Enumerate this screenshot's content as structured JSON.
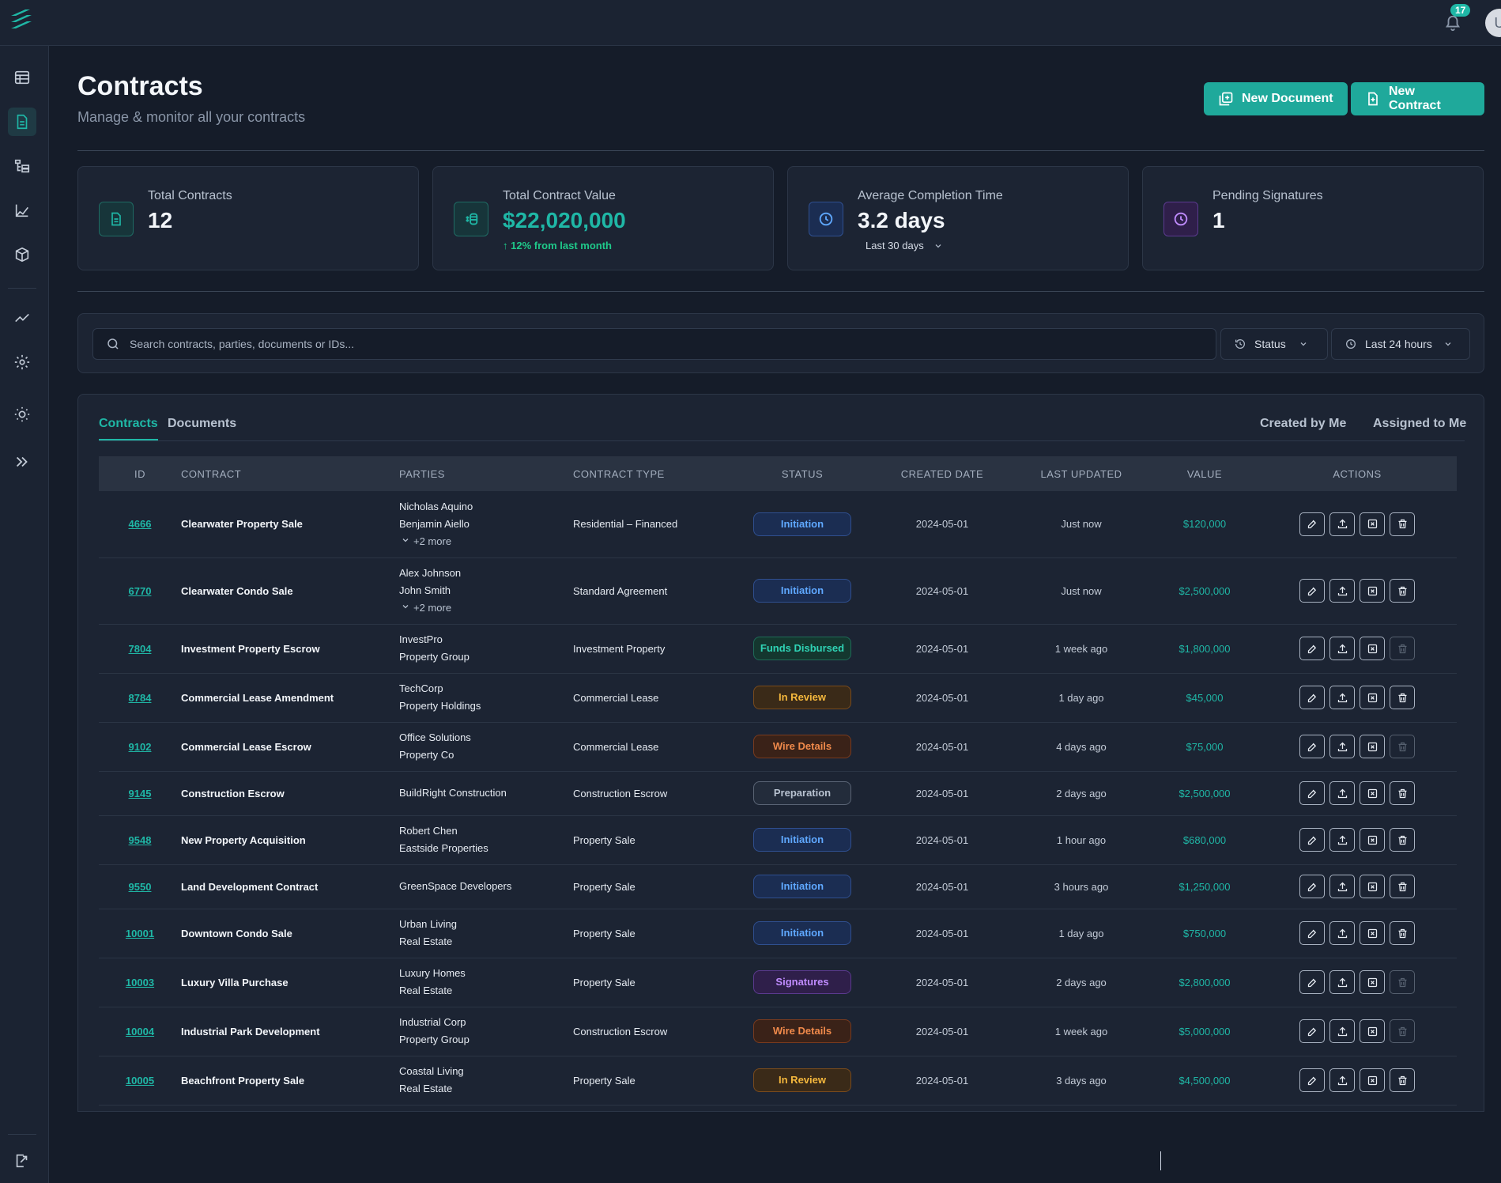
{
  "header": {
    "notification_count": "17",
    "avatar_initial": "U"
  },
  "sidebar": {
    "icons": [
      "table-icon",
      "document-icon",
      "hierarchy-icon",
      "chart-icon",
      "cube-icon",
      "trend-icon",
      "gear-icon",
      "sun-icon",
      "expand-icon",
      "logout-icon"
    ]
  },
  "page": {
    "title": "Contracts",
    "subtitle": "Manage & monitor all your contracts",
    "new_document_label": "New Document",
    "new_contract_label": "New Contract"
  },
  "stats": [
    {
      "label": "Total Contracts",
      "value": "12",
      "note": "",
      "color": "#1fb7a6"
    },
    {
      "label": "Total Contract Value",
      "value": "$22,020,000",
      "note": "↑ 12% from last month",
      "color": "#1fb7a6"
    },
    {
      "label": "Average Completion Time",
      "value": "3.2 days",
      "note": "Last 30 days",
      "color": "#3b82f6"
    },
    {
      "label": "Pending Signatures",
      "value": "1",
      "note": "",
      "color": "#a855f7"
    }
  ],
  "filters": {
    "search_placeholder": "Search contracts, parties, documents or IDs...",
    "status_label": "Status",
    "time_label": "Last 24 hours"
  },
  "tabs": {
    "contracts": "Contracts",
    "documents": "Documents",
    "created_by_me": "Created by Me",
    "assigned_to_me": "Assigned to Me"
  },
  "table": {
    "headers": [
      "ID",
      "CONTRACT",
      "PARTIES",
      "CONTRACT TYPE",
      "STATUS",
      "CREATED DATE",
      "LAST UPDATED",
      "VALUE",
      "ACTIONS"
    ],
    "rows": [
      {
        "id": "4666",
        "contract": "Clearwater Property Sale",
        "parties": [
          "Nicholas Aquino",
          "Benjamin Aiello"
        ],
        "more": "+2 more",
        "type": "Residential – Financed",
        "status": "Initiation",
        "created": "2024-05-01",
        "updated": "Just now",
        "value": "$120,000",
        "delete_enabled": true
      },
      {
        "id": "6770",
        "contract": "Clearwater Condo Sale",
        "parties": [
          "Alex Johnson",
          "John Smith"
        ],
        "more": "+2 more",
        "type": "Standard Agreement",
        "status": "Initiation",
        "created": "2024-05-01",
        "updated": "Just now",
        "value": "$2,500,000",
        "delete_enabled": true
      },
      {
        "id": "7804",
        "contract": "Investment Property Escrow",
        "parties": [
          "InvestPro",
          "Property Group"
        ],
        "more": "",
        "type": "Investment Property",
        "status": "Funds Disbursed",
        "created": "2024-05-01",
        "updated": "1 week ago",
        "value": "$1,800,000",
        "delete_enabled": false
      },
      {
        "id": "8784",
        "contract": "Commercial Lease Amendment",
        "parties": [
          "TechCorp",
          "Property Holdings"
        ],
        "more": "",
        "type": "Commercial Lease",
        "status": "In Review",
        "created": "2024-05-01",
        "updated": "1 day ago",
        "value": "$45,000",
        "delete_enabled": true
      },
      {
        "id": "9102",
        "contract": "Commercial Lease Escrow",
        "parties": [
          "Office Solutions",
          "Property Co"
        ],
        "more": "",
        "type": "Commercial Lease",
        "status": "Wire Details",
        "created": "2024-05-01",
        "updated": "4 days ago",
        "value": "$75,000",
        "delete_enabled": false
      },
      {
        "id": "9145",
        "contract": "Construction Escrow",
        "parties": [
          "BuildRight Construction"
        ],
        "more": "",
        "type": "Construction Escrow",
        "status": "Preparation",
        "created": "2024-05-01",
        "updated": "2 days ago",
        "value": "$2,500,000",
        "delete_enabled": true
      },
      {
        "id": "9548",
        "contract": "New Property Acquisition",
        "parties": [
          "Robert Chen",
          "Eastside Properties"
        ],
        "more": "",
        "type": "Property Sale",
        "status": "Initiation",
        "created": "2024-05-01",
        "updated": "1 hour ago",
        "value": "$680,000",
        "delete_enabled": true
      },
      {
        "id": "9550",
        "contract": "Land Development Contract",
        "parties": [
          "GreenSpace Developers"
        ],
        "more": "",
        "type": "Property Sale",
        "status": "Initiation",
        "created": "2024-05-01",
        "updated": "3 hours ago",
        "value": "$1,250,000",
        "delete_enabled": true
      },
      {
        "id": "10001",
        "contract": "Downtown Condo Sale",
        "parties": [
          "Urban Living",
          "Real Estate"
        ],
        "more": "",
        "type": "Property Sale",
        "status": "Initiation",
        "created": "2024-05-01",
        "updated": "1 day ago",
        "value": "$750,000",
        "delete_enabled": true
      },
      {
        "id": "10003",
        "contract": "Luxury Villa Purchase",
        "parties": [
          "Luxury Homes",
          "Real Estate"
        ],
        "more": "",
        "type": "Property Sale",
        "status": "Signatures",
        "created": "2024-05-01",
        "updated": "2 days ago",
        "value": "$2,800,000",
        "delete_enabled": false
      },
      {
        "id": "10004",
        "contract": "Industrial Park Development",
        "parties": [
          "Industrial Corp",
          "Property Group"
        ],
        "more": "",
        "type": "Construction Escrow",
        "status": "Wire Details",
        "created": "2024-05-01",
        "updated": "1 week ago",
        "value": "$5,000,000",
        "delete_enabled": false
      },
      {
        "id": "10005",
        "contract": "Beachfront Property Sale",
        "parties": [
          "Coastal Living",
          "Real Estate"
        ],
        "more": "",
        "type": "Property Sale",
        "status": "In Review",
        "created": "2024-05-01",
        "updated": "3 days ago",
        "value": "$4,500,000",
        "delete_enabled": true
      }
    ]
  },
  "status_colors": {
    "Initiation": {
      "text": "#5fa8ff",
      "bg": "#1b2d52",
      "border": "#2f4f8f"
    },
    "Funds Disbursed": {
      "text": "#2fd3b5",
      "bg": "#14372f",
      "border": "#1f6b58"
    },
    "In Review": {
      "text": "#f5b83d",
      "bg": "#3a2a18",
      "border": "#7a4b1c"
    },
    "Wire Details": {
      "text": "#f08a4b",
      "bg": "#3a2218",
      "border": "#7a3b1e"
    },
    "Preparation": {
      "text": "#b8c2d0",
      "bg": "#232c3b",
      "border": "#5a6475"
    },
    "Signatures": {
      "text": "#c08cff",
      "bg": "#2f1f4a",
      "border": "#5b3a8f"
    }
  }
}
